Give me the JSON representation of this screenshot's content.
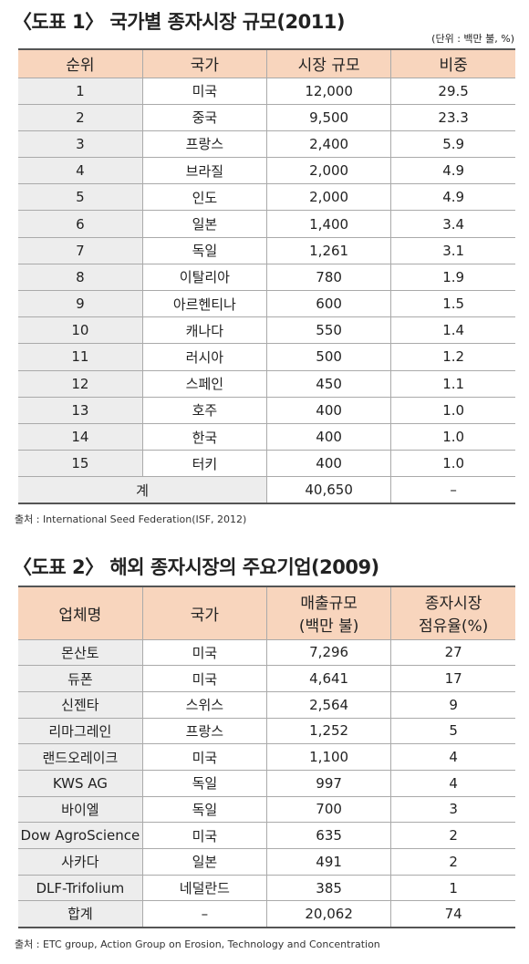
{
  "table1": {
    "title": "〈도표 1〉 국가별 종자시장 규모(2011)",
    "unit": "(단위 : 백만 불, %)",
    "header": [
      "순위",
      "국가",
      "시장 규모",
      "비중"
    ],
    "rows": [
      [
        "1",
        "미국",
        "12,000",
        "29.5"
      ],
      [
        "2",
        "중국",
        "9,500",
        "23.3"
      ],
      [
        "3",
        "프랑스",
        "2,400",
        "5.9"
      ],
      [
        "4",
        "브라질",
        "2,000",
        "4.9"
      ],
      [
        "5",
        "인도",
        "2,000",
        "4.9"
      ],
      [
        "6",
        "일본",
        "1,400",
        "3.4"
      ],
      [
        "7",
        "독일",
        "1,261",
        "3.1"
      ],
      [
        "8",
        "이탈리아",
        "780",
        "1.9"
      ],
      [
        "9",
        "아르헨티나",
        "600",
        "1.5"
      ],
      [
        "10",
        "캐나다",
        "550",
        "1.4"
      ],
      [
        "11",
        "러시아",
        "500",
        "1.2"
      ],
      [
        "12",
        "스페인",
        "450",
        "1.1"
      ],
      [
        "13",
        "호주",
        "400",
        "1.0"
      ],
      [
        "14",
        "한국",
        "400",
        "1.0"
      ],
      [
        "15",
        "터키",
        "400",
        "1.0"
      ]
    ],
    "total": [
      "계",
      "40,650",
      "–"
    ],
    "source": "출처 : International Seed Federation(ISF, 2012)"
  },
  "table2": {
    "title": "〈도표 2〉 해외 종자시장의 주요기업(2009)",
    "header": [
      "업체명",
      "국가",
      "매출규모\n(백만 불)",
      "종자시장\n점유율(%)"
    ],
    "rows": [
      [
        "몬산토",
        "미국",
        "7,296",
        "27"
      ],
      [
        "듀폰",
        "미국",
        "4,641",
        "17"
      ],
      [
        "신젠타",
        "스위스",
        "2,564",
        "9"
      ],
      [
        "리마그레인",
        "프랑스",
        "1,252",
        "5"
      ],
      [
        "랜드오레이크",
        "미국",
        "1,100",
        "4"
      ],
      [
        "KWS AG",
        "독일",
        "997",
        "4"
      ],
      [
        "바이엘",
        "독일",
        "700",
        "3"
      ],
      [
        "Dow AgroScience",
        "미국",
        "635",
        "2"
      ],
      [
        "사카다",
        "일본",
        "491",
        "2"
      ],
      [
        "DLF-Trifolium",
        "네덜란드",
        "385",
        "1"
      ],
      [
        "합계",
        "–",
        "20,062",
        "74"
      ]
    ],
    "source": "출처 : ETC group, Action Group on Erosion, Technology and Concentration"
  }
}
